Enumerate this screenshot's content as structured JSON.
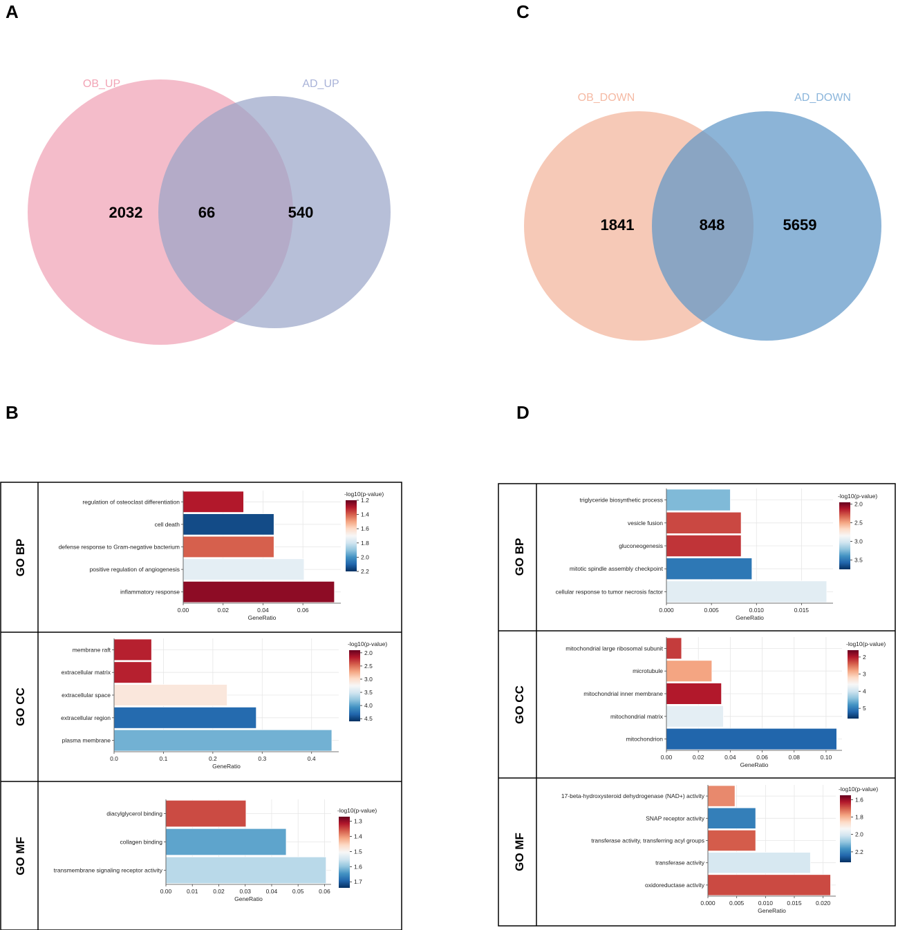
{
  "panel_labels": {
    "a": "A",
    "b": "B",
    "c": "C",
    "d": "D"
  },
  "venn_a": {
    "left_label": "OB_UP",
    "right_label": "AD_UP",
    "left_only": "2032",
    "overlap": "66",
    "right_only": "540",
    "left_color": "#f0a0b4",
    "right_color": "#98a4c8",
    "left_label_color": "#f2a3b5",
    "right_label_color": "#a8b2d8"
  },
  "venn_c": {
    "left_label": "OB_DOWN",
    "right_label": "AD_DOWN",
    "left_only": "1841",
    "overlap": "848",
    "right_only": "5659",
    "left_color": "#f2b49b",
    "right_color": "#5f97c8",
    "left_label_color": "#f5b9a3",
    "right_label_color": "#8ab5db"
  },
  "colors": {
    "stops": [
      "#67001f",
      "#b2182b",
      "#d6604d",
      "#f4a582",
      "#fddbc7",
      "#f7f7f7",
      "#d1e5f0",
      "#92c5de",
      "#4393c3",
      "#2166ac",
      "#053061"
    ]
  },
  "chart_data": [
    {
      "id": "B_BP",
      "type": "bar",
      "orientation": "horizontal",
      "group_label": "GO BP",
      "categories": [
        "regulation of osteoclast differentiation",
        "cell death",
        "defense response to Gram-negative bacterium",
        "positive regulation of angiogenesis",
        "inflammatory response"
      ],
      "values": [
        0.0303,
        0.0455,
        0.0455,
        0.0606,
        0.0758
      ],
      "colors": [
        1.3,
        2.15,
        1.4,
        1.75,
        1.25
      ],
      "xlabel": "GeneRatio",
      "xlim": [
        0,
        0.079
      ],
      "xticks": [
        "0.00",
        "0.02",
        "0.04",
        "0.06"
      ],
      "legend_title": "-log10(p-value)",
      "legend_ticks": [
        "1.2",
        "1.4",
        "1.6",
        "1.8",
        "2.0",
        "2.2"
      ],
      "legend_range": [
        1.2,
        2.2
      ]
    },
    {
      "id": "B_CC",
      "type": "bar",
      "orientation": "horizontal",
      "group_label": "GO CC",
      "categories": [
        "membrane raft",
        "extracellular matrix",
        "extracellular space",
        "extracellular region",
        "plasma membrane"
      ],
      "values": [
        0.076,
        0.076,
        0.229,
        0.288,
        0.441
      ],
      "colors": [
        2.2,
        2.2,
        3.1,
        4.3,
        3.9
      ],
      "xlabel": "GeneRatio",
      "xlim": [
        0,
        0.455
      ],
      "xticks": [
        "0.0",
        "0.1",
        "0.2",
        "0.3",
        "0.4"
      ],
      "legend_title": "-log10(p-value)",
      "legend_ticks": [
        "2.0",
        "2.5",
        "3.0",
        "3.5",
        "4.0",
        "4.5"
      ],
      "legend_range": [
        1.9,
        4.6
      ]
    },
    {
      "id": "B_MF",
      "type": "bar",
      "orientation": "horizontal",
      "group_label": "GO MF",
      "categories": [
        "diacylglycerol binding",
        "collagen binding",
        "transmembrane signaling receptor activity"
      ],
      "values": [
        0.0303,
        0.0455,
        0.0606
      ],
      "colors": [
        1.35,
        1.63,
        1.57
      ],
      "xlabel": "GeneRatio",
      "xlim": [
        0,
        0.0625
      ],
      "xticks": [
        "0.00",
        "0.01",
        "0.02",
        "0.03",
        "0.04",
        "0.05",
        "0.06"
      ],
      "legend_title": "-log10(p-value)",
      "legend_ticks": [
        "1.3",
        "1.4",
        "1.5",
        "1.6",
        "1.7"
      ],
      "legend_range": [
        1.27,
        1.74
      ]
    },
    {
      "id": "D_BP",
      "type": "bar",
      "orientation": "horizontal",
      "group_label": "GO BP",
      "categories": [
        "triglyceride biosynthetic process",
        "vesicle fusion",
        "gluconeogenesis",
        "mitotic spindle assembly checkpoint",
        "cellular response to tumor necrosis factor"
      ],
      "values": [
        0.0071,
        0.0083,
        0.0083,
        0.0095,
        0.0178
      ],
      "colors": [
        3.25,
        2.25,
        2.2,
        3.5,
        2.95
      ],
      "xlabel": "GeneRatio",
      "xlim": [
        0,
        0.0185
      ],
      "xticks": [
        "0.000",
        "0.005",
        "0.010",
        "0.015"
      ],
      "legend_title": "-log10(p-value)",
      "legend_ticks": [
        "2.0",
        "2.5",
        "3.0",
        "3.5"
      ],
      "legend_range": [
        1.95,
        3.75
      ]
    },
    {
      "id": "D_CC",
      "type": "bar",
      "orientation": "horizontal",
      "group_label": "GO CC",
      "categories": [
        "mitochondrial large ribosomal subunit",
        "microtubule",
        "mitochondrial inner membrane",
        "mitochondrial matrix",
        "mitochondrion"
      ],
      "values": [
        0.0095,
        0.0285,
        0.0345,
        0.0357,
        0.1067
      ],
      "colors": [
        2.2,
        2.8,
        2.0,
        3.8,
        5.2
      ],
      "xlabel": "GeneRatio",
      "xlim": [
        0,
        0.11
      ],
      "xticks": [
        "0.00",
        "0.02",
        "0.04",
        "0.06",
        "0.08",
        "0.10"
      ],
      "legend_title": "-log10(p-value)",
      "legend_ticks": [
        "2",
        "3",
        "4",
        "5"
      ],
      "legend_range": [
        1.6,
        5.6
      ]
    },
    {
      "id": "D_MF",
      "type": "bar",
      "orientation": "horizontal",
      "group_label": "GO MF",
      "categories": [
        "17-beta-hydroxysteroid dehydrogenase (NAD+) activity",
        "SNAP receptor activity",
        "transferase activity, transferring acyl groups",
        "transferase activity",
        "oxidoreductase activity"
      ],
      "values": [
        0.0047,
        0.0083,
        0.0083,
        0.0178,
        0.0213
      ],
      "colors": [
        1.75,
        2.2,
        1.7,
        2.0,
        1.68
      ],
      "xlabel": "GeneRatio",
      "xlim": [
        0,
        0.0222
      ],
      "xticks": [
        "0.000",
        "0.005",
        "0.010",
        "0.015",
        "0.020"
      ],
      "legend_title": "-log10(p-value)",
      "legend_ticks": [
        "1.6",
        "1.8",
        "2.0",
        "2.2"
      ],
      "legend_range": [
        1.55,
        2.32
      ]
    }
  ]
}
